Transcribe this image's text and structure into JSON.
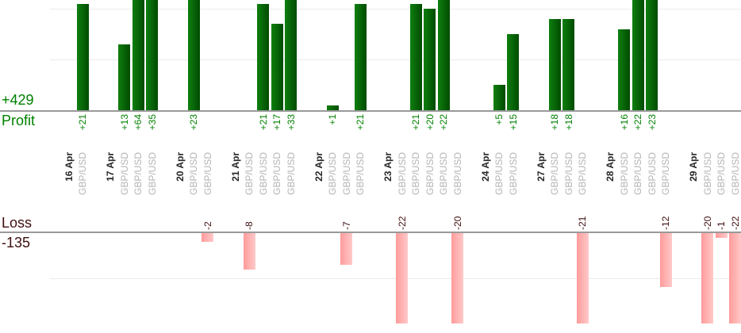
{
  "chart_data": {
    "type": "bar",
    "orientation": "vertical",
    "grid": true,
    "profit_axis": {
      "axis_label": "Profit",
      "total_label": "+429",
      "total_value": 429,
      "gridline_values": [
        10,
        20
      ],
      "visible_range": [
        0,
        22
      ]
    },
    "loss_axis": {
      "axis_label": "Loss",
      "total_label": "-135",
      "total_value": -135,
      "gridline_values": [
        -10
      ],
      "visible_range": [
        0,
        -20
      ]
    },
    "colors": {
      "profit_text": "#008000",
      "loss_text": "#3f0e0e",
      "date_text": "#262626",
      "symbol_text": "#b4b4b4",
      "axis_line": "#999999",
      "gridline": "#ebebeb",
      "profit_bar_gradient": [
        "#0f7f0f",
        "#004b00"
      ],
      "loss_bar_gradient": [
        "#ff9b9b",
        "#ffc9c9"
      ]
    },
    "groups": [
      {
        "date": "16 Apr",
        "trades": [
          {
            "symbol": "GBP/USD",
            "value": 21,
            "label": "+21"
          }
        ]
      },
      {
        "date": "17 Apr",
        "trades": [
          {
            "symbol": "GBP/USD",
            "value": 13,
            "label": "+13"
          },
          {
            "symbol": "GBP/USD",
            "value": 64,
            "label": "+64"
          },
          {
            "symbol": "GBP/USD",
            "value": 35,
            "label": "+35"
          }
        ]
      },
      {
        "date": "20 Apr",
        "trades": [
          {
            "symbol": "GBP/USD",
            "value": 23,
            "label": "+23"
          },
          {
            "symbol": "GBP/USD",
            "value": -2,
            "label": "-2"
          }
        ]
      },
      {
        "date": "21 Apr",
        "trades": [
          {
            "symbol": "GBP/USD",
            "value": -8,
            "label": "-8"
          },
          {
            "symbol": "GBP/USD",
            "value": 21,
            "label": "+21"
          },
          {
            "symbol": "GBP/USD",
            "value": 17,
            "label": "+17"
          },
          {
            "symbol": "GBP/USD",
            "value": 33,
            "label": "+33"
          }
        ]
      },
      {
        "date": "22 Apr",
        "trades": [
          {
            "symbol": "GBP/USD",
            "value": 1,
            "label": "+1"
          },
          {
            "symbol": "GBP/USD",
            "value": -7,
            "label": "-7"
          },
          {
            "symbol": "GBP/USD",
            "value": 21,
            "label": "+21"
          }
        ]
      },
      {
        "date": "23 Apr",
        "trades": [
          {
            "symbol": "GBP/USD",
            "value": -22,
            "label": "-22"
          },
          {
            "symbol": "GBP/USD",
            "value": 21,
            "label": "+21"
          },
          {
            "symbol": "GBP/USD",
            "value": 20,
            "label": "+20"
          },
          {
            "symbol": "GBP/USD",
            "value": 22,
            "label": "+22"
          },
          {
            "symbol": "GBP/USD",
            "value": -20,
            "label": "-20"
          }
        ]
      },
      {
        "date": "24 Apr",
        "trades": [
          {
            "symbol": "GBP/USD",
            "value": 5,
            "label": "+5"
          },
          {
            "symbol": "GBP/USD",
            "value": 15,
            "label": "+15"
          }
        ]
      },
      {
        "date": "27 Apr",
        "trades": [
          {
            "symbol": "GBP/USD",
            "value": 18,
            "label": "+18"
          },
          {
            "symbol": "GBP/USD",
            "value": 18,
            "label": "+18"
          },
          {
            "symbol": "GBP/USD",
            "value": -21,
            "label": "-21"
          }
        ]
      },
      {
        "date": "28 Apr",
        "trades": [
          {
            "symbol": "GBP/USD",
            "value": 16,
            "label": "+16"
          },
          {
            "symbol": "GBP/USD",
            "value": 22,
            "label": "+22"
          },
          {
            "symbol": "GBP/USD",
            "value": 23,
            "label": "+23"
          },
          {
            "symbol": "GBP/USD",
            "value": -12,
            "label": "-12"
          }
        ]
      },
      {
        "date": "29 Apr",
        "trades": [
          {
            "symbol": "GBP/USD",
            "value": -20,
            "label": "-20"
          },
          {
            "symbol": "GBP/USD",
            "value": -1,
            "label": "-1"
          },
          {
            "symbol": "GBP/USD",
            "value": -22,
            "label": "-22"
          }
        ]
      }
    ]
  }
}
